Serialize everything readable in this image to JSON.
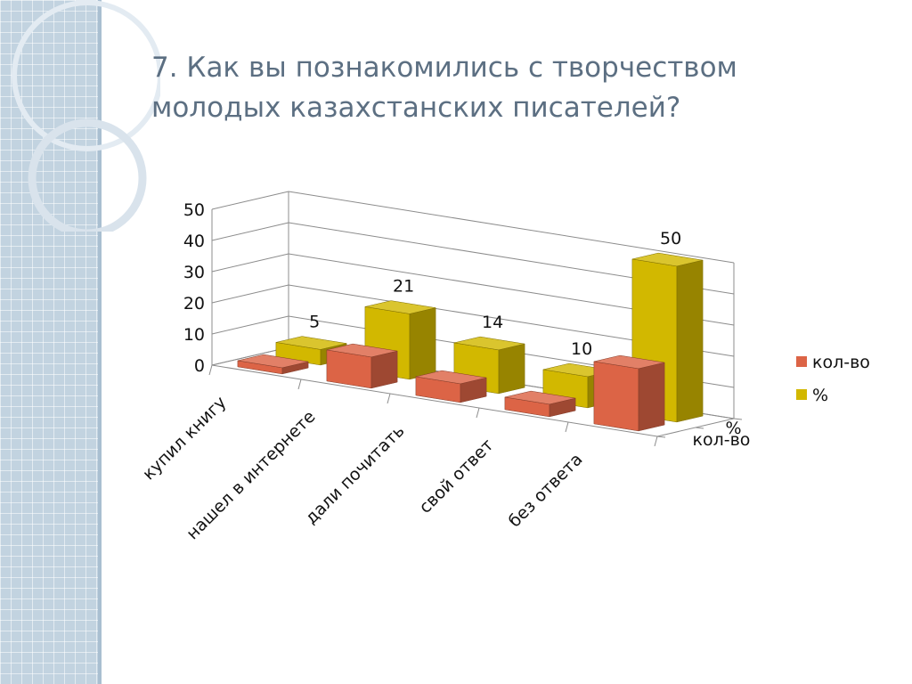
{
  "slide": {
    "title_line1": "7. Как вы познакомились с творчеством",
    "title_line2": "молодых казахстанских писателей?"
  },
  "colors": {
    "sidebar": "#c2d3e0",
    "title": "#5c6f82",
    "series_kolvo": "#dc6446",
    "series_percent": "#d2b800"
  },
  "chart_data": {
    "type": "bar",
    "three_d": true,
    "categories": [
      "купил книгу",
      "нашел в интернете",
      "дали почитать",
      "свой ответ",
      "без ответа"
    ],
    "series": [
      {
        "name": "кол-во",
        "values": [
          2,
          10,
          6,
          4,
          20
        ],
        "color": "#dc6446"
      },
      {
        "name": "%",
        "values": [
          5,
          21,
          14,
          10,
          50
        ],
        "color": "#d2b800",
        "data_labels": [
          "5",
          "21",
          "14",
          "10",
          "50"
        ]
      }
    ],
    "ylim": [
      0,
      50
    ],
    "yticks": [
      "0",
      "10",
      "20",
      "30",
      "40",
      "50"
    ],
    "depth_labels": [
      "%",
      "кол-во"
    ],
    "legend": [
      "кол-во",
      "%"
    ],
    "legend_position": "right",
    "grid": true
  }
}
